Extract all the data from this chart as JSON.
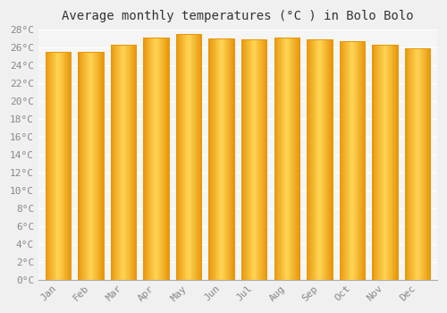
{
  "title": "Average monthly temperatures (°C ) in Bolo Bolo",
  "months": [
    "Jan",
    "Feb",
    "Mar",
    "Apr",
    "May",
    "Jun",
    "Jul",
    "Aug",
    "Sep",
    "Oct",
    "Nov",
    "Dec"
  ],
  "temperatures": [
    25.5,
    25.5,
    26.3,
    27.1,
    27.5,
    27.0,
    26.9,
    27.1,
    26.9,
    26.7,
    26.3,
    25.9
  ],
  "bar_edge_color": "#E8960A",
  "bar_center_color": "#FFD555",
  "bar_base_color": "#FFA800",
  "ylim": [
    0,
    28
  ],
  "ytick_step": 2,
  "background_color": "#f0f0f0",
  "plot_bg_color": "#f5f5f5",
  "grid_color": "#ffffff",
  "title_fontsize": 10,
  "tick_fontsize": 8,
  "font_family": "monospace"
}
